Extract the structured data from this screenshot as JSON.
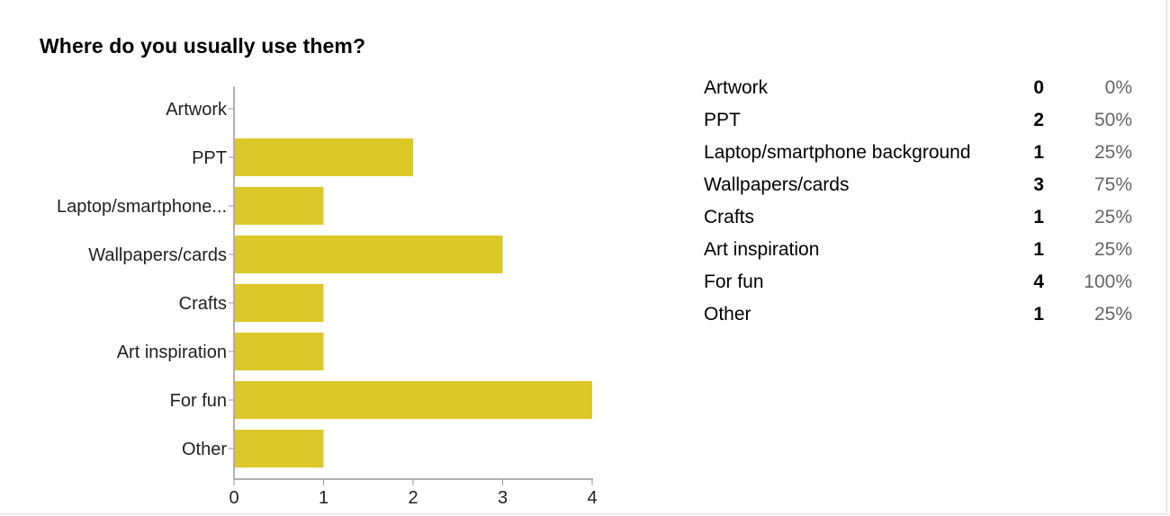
{
  "question": {
    "title": "Where do you usually use them?"
  },
  "colors": {
    "bar": "#dbc829",
    "axis": "#999999",
    "text": "#222222",
    "percent_text": "#666666"
  },
  "chart_data": {
    "type": "bar",
    "orientation": "horizontal",
    "categories": [
      "Artwork",
      "PPT",
      "Laptop/smartphone...",
      "Wallpapers/cards",
      "Crafts",
      "Art inspiration",
      "For fun",
      "Other"
    ],
    "values": [
      0,
      2,
      1,
      3,
      1,
      1,
      4,
      1
    ],
    "xlim": [
      0,
      4
    ],
    "xticks": [
      "0",
      "1",
      "2",
      "3",
      "4"
    ],
    "grid": false,
    "xlabel": "",
    "ylabel": ""
  },
  "summary": {
    "rows": [
      {
        "label": "Artwork",
        "count": "0",
        "percent": "0%"
      },
      {
        "label": "PPT",
        "count": "2",
        "percent": "50%"
      },
      {
        "label": "Laptop/smartphone background",
        "count": "1",
        "percent": "25%"
      },
      {
        "label": "Wallpapers/cards",
        "count": "3",
        "percent": "75%"
      },
      {
        "label": "Crafts",
        "count": "1",
        "percent": "25%"
      },
      {
        "label": "Art inspiration",
        "count": "1",
        "percent": "25%"
      },
      {
        "label": "For fun",
        "count": "4",
        "percent": "100%"
      },
      {
        "label": "Other",
        "count": "1",
        "percent": "25%"
      }
    ]
  }
}
